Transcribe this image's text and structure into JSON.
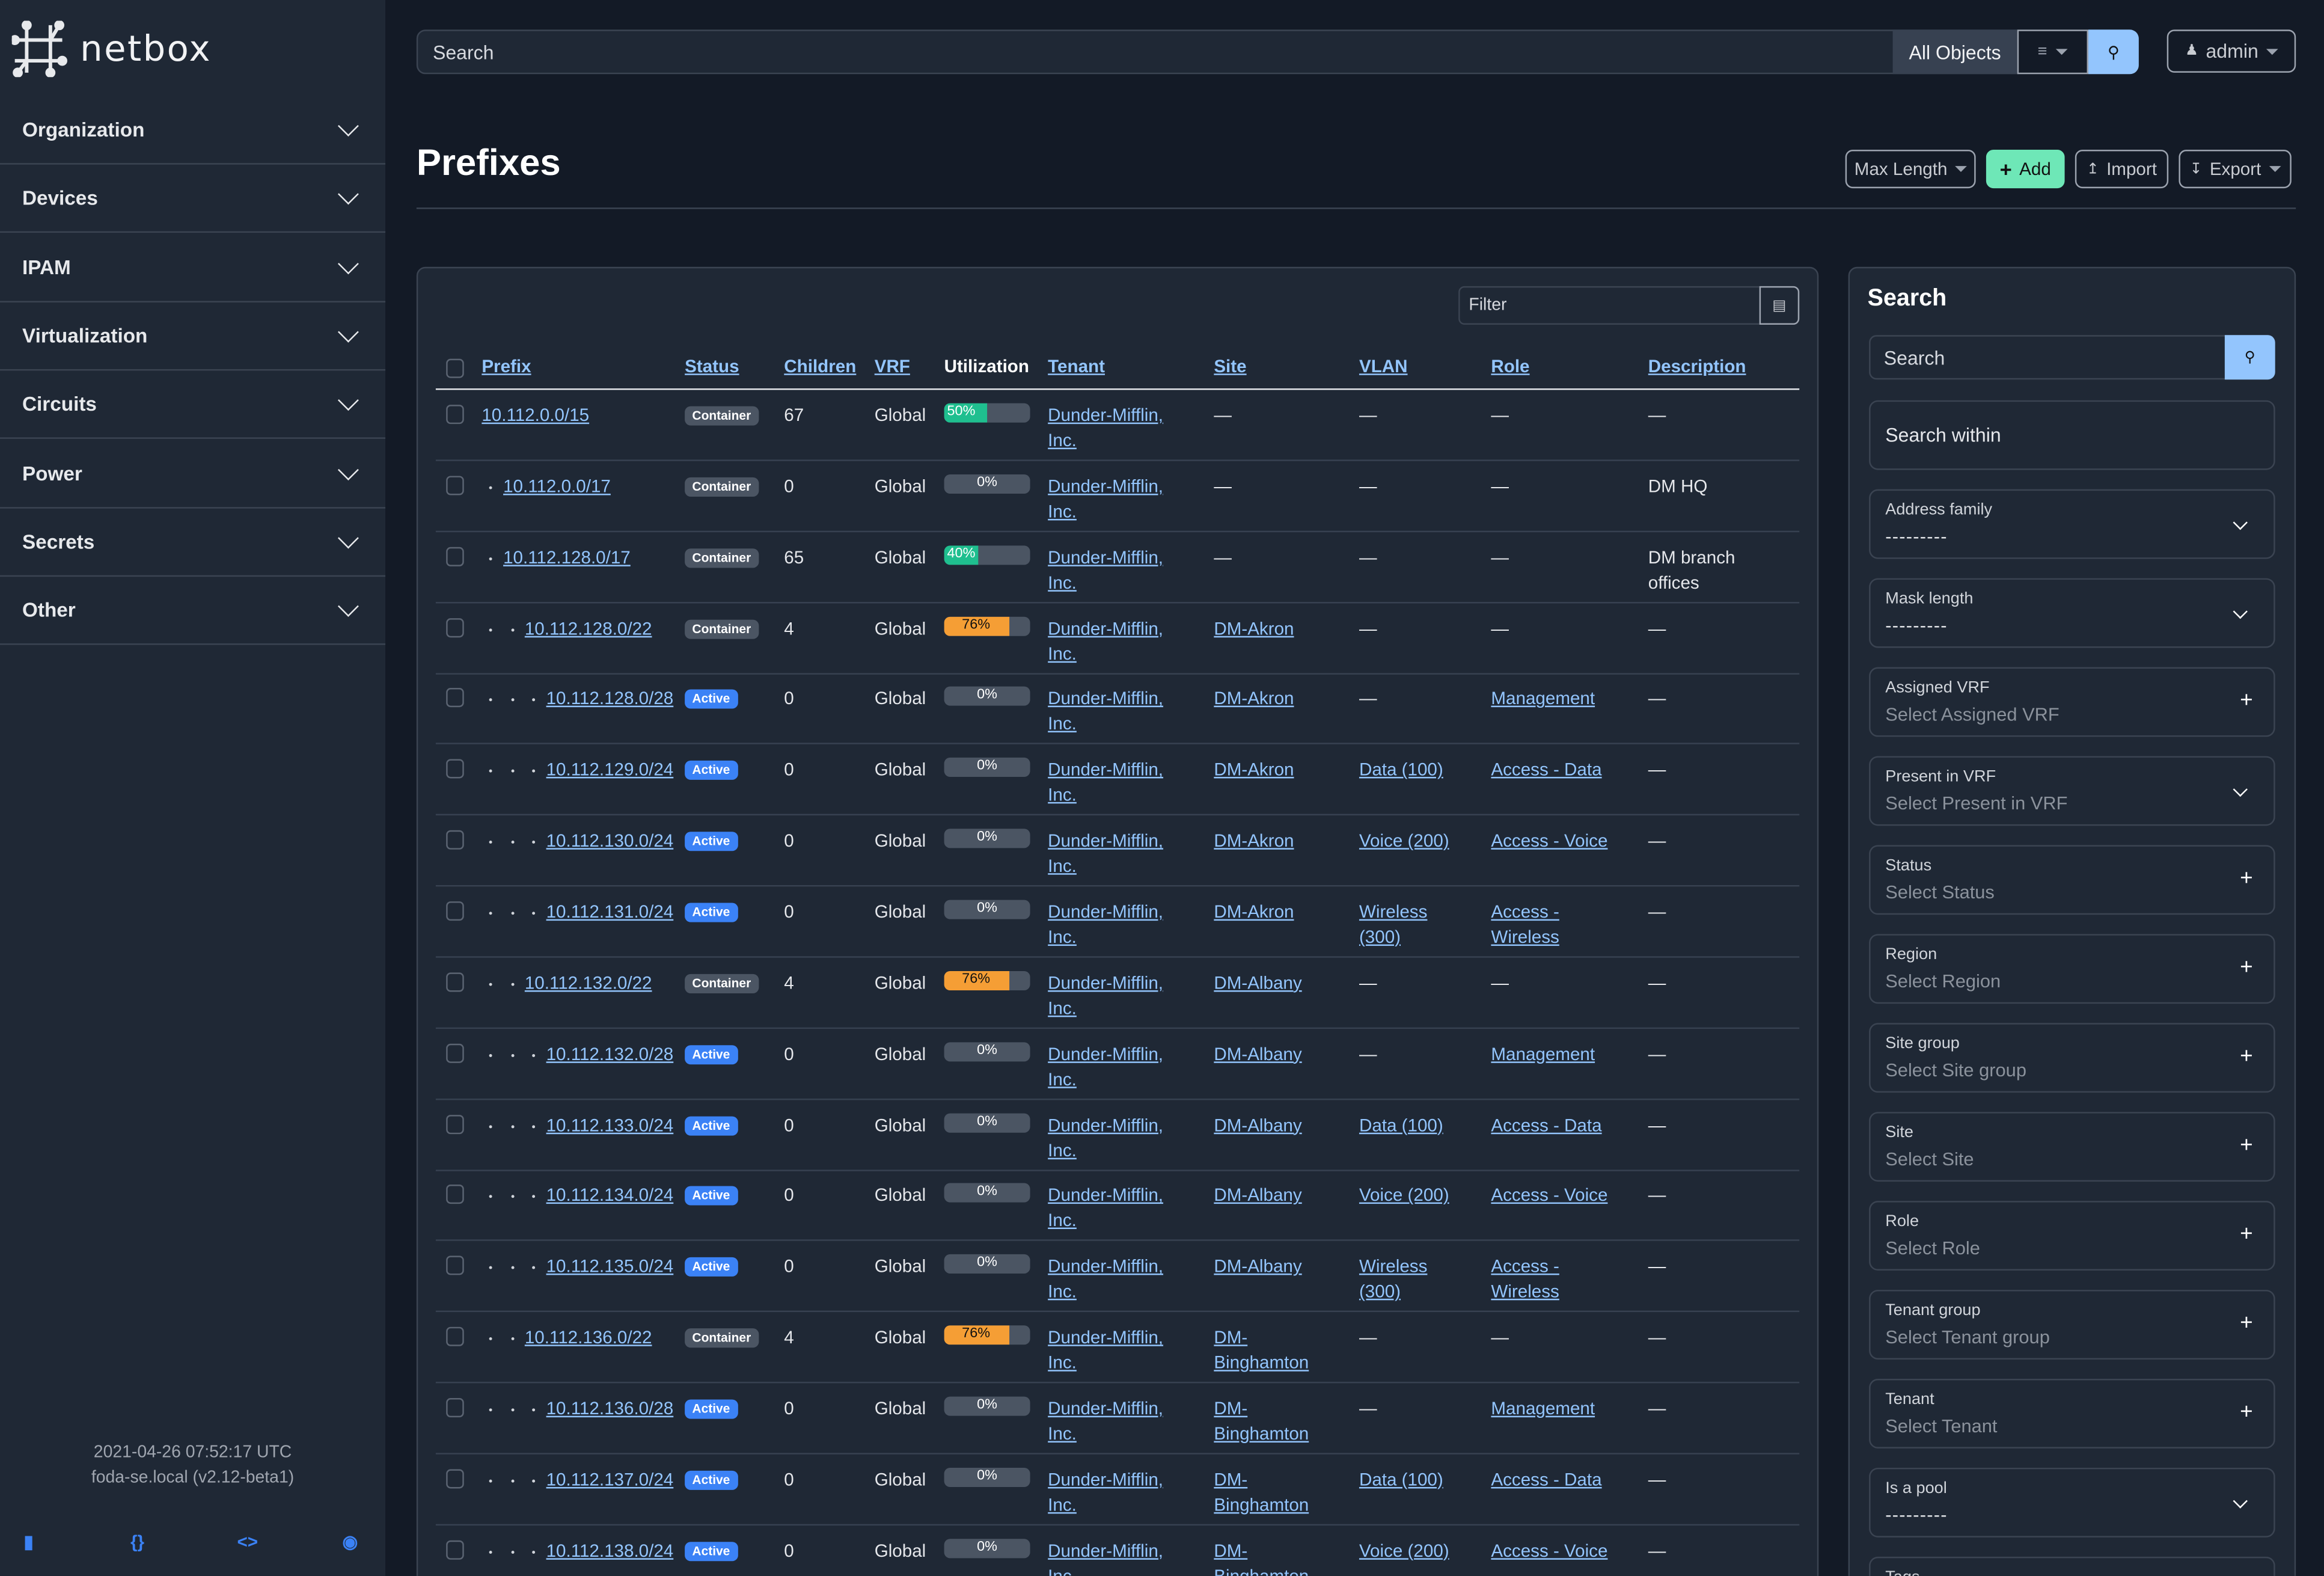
{
  "brand": {
    "name": "netbox"
  },
  "sidebar": {
    "items": [
      {
        "label": "Organization"
      },
      {
        "label": "Devices"
      },
      {
        "label": "IPAM"
      },
      {
        "label": "Virtualization"
      },
      {
        "label": "Circuits"
      },
      {
        "label": "Power"
      },
      {
        "label": "Secrets"
      },
      {
        "label": "Other"
      }
    ],
    "footer": {
      "timestamp": "2021-04-26 07:52:17 UTC",
      "host": "foda-se.local (v2.12-beta1)",
      "icons": [
        "book-icon",
        "braces-icon",
        "code-icon",
        "lifebuoy-icon"
      ]
    }
  },
  "header": {
    "search_placeholder": "Search",
    "scope": "All Objects",
    "user": "admin"
  },
  "page": {
    "title": "Prefixes",
    "buttons": {
      "max_length": "Max Length",
      "add": "Add",
      "import": "Import",
      "export": "Export"
    }
  },
  "colors": {
    "accent": "#93c5fd",
    "add": "#6ee7b7",
    "active": "#3b82f6",
    "container": "#4b5563",
    "util_green": "#1fbf8f",
    "util_orange": "#f59e35"
  },
  "table": {
    "filter_placeholder": "Filter",
    "columns": [
      "Prefix",
      "Status",
      "Children",
      "VRF",
      "Utilization",
      "Tenant",
      "Site",
      "VLAN",
      "Role",
      "Description"
    ],
    "rows": [
      {
        "prefix": "10.112.0.0/15",
        "depth": 0,
        "status": "Container",
        "children": "67",
        "vrf": "Global",
        "util": 50,
        "tenant": "Dunder-Mifflin, Inc.",
        "site": "—",
        "vlan": "—",
        "role": "—",
        "description": "—"
      },
      {
        "prefix": "10.112.0.0/17",
        "depth": 1,
        "status": "Container",
        "children": "0",
        "vrf": "Global",
        "util": 0,
        "tenant": "Dunder-Mifflin, Inc.",
        "site": "—",
        "vlan": "—",
        "role": "—",
        "description": "DM HQ"
      },
      {
        "prefix": "10.112.128.0/17",
        "depth": 1,
        "status": "Container",
        "children": "65",
        "vrf": "Global",
        "util": 40,
        "tenant": "Dunder-Mifflin, Inc.",
        "site": "—",
        "vlan": "—",
        "role": "—",
        "description": "DM branch offices"
      },
      {
        "prefix": "10.112.128.0/22",
        "depth": 2,
        "status": "Container",
        "children": "4",
        "vrf": "Global",
        "util": 76,
        "tenant": "Dunder-Mifflin, Inc.",
        "site": "DM-Akron",
        "vlan": "—",
        "role": "—",
        "description": "—"
      },
      {
        "prefix": "10.112.128.0/28",
        "depth": 3,
        "status": "Active",
        "children": "0",
        "vrf": "Global",
        "util": 0,
        "tenant": "Dunder-Mifflin, Inc.",
        "site": "DM-Akron",
        "vlan": "—",
        "role": "Management",
        "description": "—"
      },
      {
        "prefix": "10.112.129.0/24",
        "depth": 3,
        "status": "Active",
        "children": "0",
        "vrf": "Global",
        "util": 0,
        "tenant": "Dunder-Mifflin, Inc.",
        "site": "DM-Akron",
        "vlan": "Data (100)",
        "role": "Access - Data",
        "description": "—"
      },
      {
        "prefix": "10.112.130.0/24",
        "depth": 3,
        "status": "Active",
        "children": "0",
        "vrf": "Global",
        "util": 0,
        "tenant": "Dunder-Mifflin, Inc.",
        "site": "DM-Akron",
        "vlan": "Voice (200)",
        "role": "Access - Voice",
        "description": "—"
      },
      {
        "prefix": "10.112.131.0/24",
        "depth": 3,
        "status": "Active",
        "children": "0",
        "vrf": "Global",
        "util": 0,
        "tenant": "Dunder-Mifflin, Inc.",
        "site": "DM-Akron",
        "vlan": "Wireless (300)",
        "role": "Access - Wireless",
        "description": "—"
      },
      {
        "prefix": "10.112.132.0/22",
        "depth": 2,
        "status": "Container",
        "children": "4",
        "vrf": "Global",
        "util": 76,
        "tenant": "Dunder-Mifflin, Inc.",
        "site": "DM-Albany",
        "vlan": "—",
        "role": "—",
        "description": "—"
      },
      {
        "prefix": "10.112.132.0/28",
        "depth": 3,
        "status": "Active",
        "children": "0",
        "vrf": "Global",
        "util": 0,
        "tenant": "Dunder-Mifflin, Inc.",
        "site": "DM-Albany",
        "vlan": "—",
        "role": "Management",
        "description": "—"
      },
      {
        "prefix": "10.112.133.0/24",
        "depth": 3,
        "status": "Active",
        "children": "0",
        "vrf": "Global",
        "util": 0,
        "tenant": "Dunder-Mifflin, Inc.",
        "site": "DM-Albany",
        "vlan": "Data (100)",
        "role": "Access - Data",
        "description": "—"
      },
      {
        "prefix": "10.112.134.0/24",
        "depth": 3,
        "status": "Active",
        "children": "0",
        "vrf": "Global",
        "util": 0,
        "tenant": "Dunder-Mifflin, Inc.",
        "site": "DM-Albany",
        "vlan": "Voice (200)",
        "role": "Access - Voice",
        "description": "—"
      },
      {
        "prefix": "10.112.135.0/24",
        "depth": 3,
        "status": "Active",
        "children": "0",
        "vrf": "Global",
        "util": 0,
        "tenant": "Dunder-Mifflin, Inc.",
        "site": "DM-Albany",
        "vlan": "Wireless (300)",
        "role": "Access - Wireless",
        "description": "—"
      },
      {
        "prefix": "10.112.136.0/22",
        "depth": 2,
        "status": "Container",
        "children": "4",
        "vrf": "Global",
        "util": 76,
        "tenant": "Dunder-Mifflin, Inc.",
        "site": "DM-Binghamton",
        "vlan": "—",
        "role": "—",
        "description": "—"
      },
      {
        "prefix": "10.112.136.0/28",
        "depth": 3,
        "status": "Active",
        "children": "0",
        "vrf": "Global",
        "util": 0,
        "tenant": "Dunder-Mifflin, Inc.",
        "site": "DM-Binghamton",
        "vlan": "—",
        "role": "Management",
        "description": "—"
      },
      {
        "prefix": "10.112.137.0/24",
        "depth": 3,
        "status": "Active",
        "children": "0",
        "vrf": "Global",
        "util": 0,
        "tenant": "Dunder-Mifflin, Inc.",
        "site": "DM-Binghamton",
        "vlan": "Data (100)",
        "role": "Access - Data",
        "description": "—"
      },
      {
        "prefix": "10.112.138.0/24",
        "depth": 3,
        "status": "Active",
        "children": "0",
        "vrf": "Global",
        "util": 0,
        "tenant": "Dunder-Mifflin, Inc.",
        "site": "DM-Binghamton",
        "vlan": "Voice (200)",
        "role": "Access - Voice",
        "description": "—"
      }
    ]
  },
  "search_panel": {
    "title": "Search",
    "search_placeholder": "Search",
    "search_within": "Search within",
    "fields": [
      {
        "label": "Address family",
        "value": "---------",
        "control": "select"
      },
      {
        "label": "Mask length",
        "value": "---------",
        "control": "select"
      },
      {
        "label": "Assigned VRF",
        "value": "Select Assigned VRF",
        "control": "add"
      },
      {
        "label": "Present in VRF",
        "value": "Select Present in VRF",
        "control": "select"
      },
      {
        "label": "Status",
        "value": "Select Status",
        "control": "add"
      },
      {
        "label": "Region",
        "value": "Select Region",
        "control": "add"
      },
      {
        "label": "Site group",
        "value": "Select Site group",
        "control": "add"
      },
      {
        "label": "Site",
        "value": "Select Site",
        "control": "add"
      },
      {
        "label": "Role",
        "value": "Select Role",
        "control": "add"
      },
      {
        "label": "Tenant group",
        "value": "Select Tenant group",
        "control": "add"
      },
      {
        "label": "Tenant",
        "value": "Select Tenant",
        "control": "add"
      },
      {
        "label": "Is a pool",
        "value": "---------",
        "control": "select"
      },
      {
        "label": "Tags",
        "value": "",
        "control": "add"
      }
    ]
  }
}
